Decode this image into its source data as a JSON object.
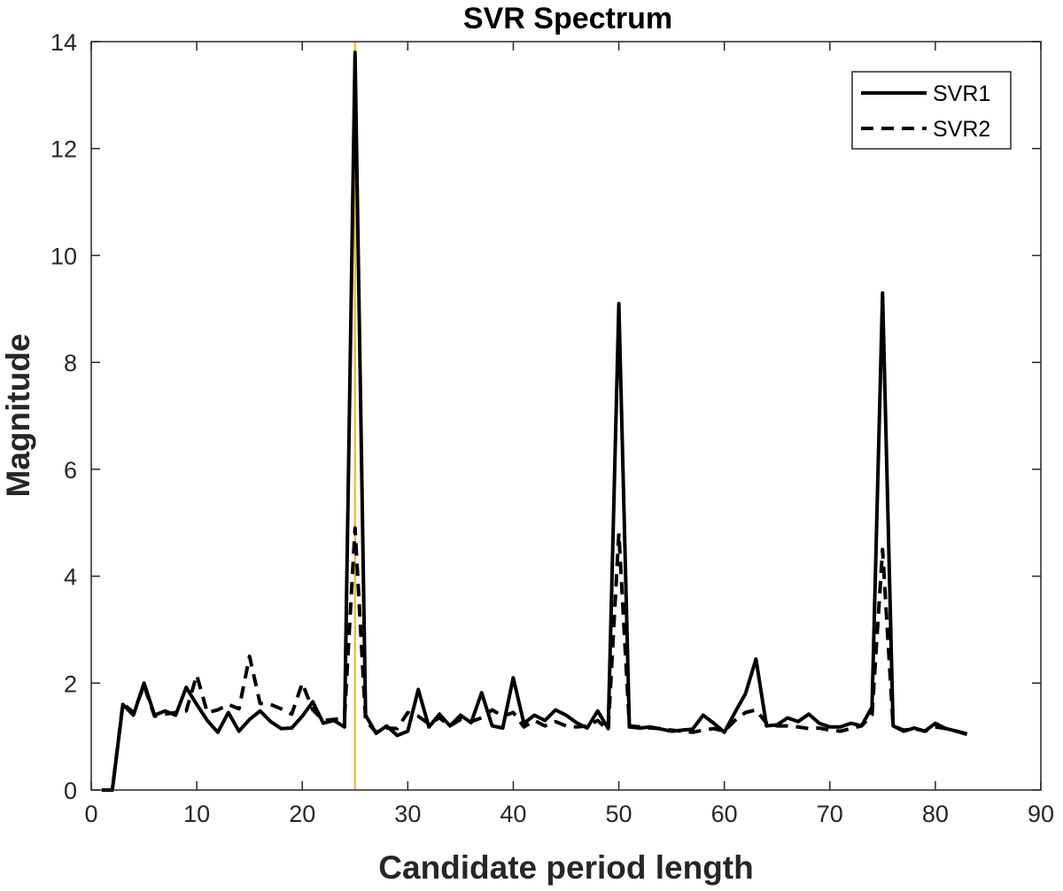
{
  "chart_data": {
    "type": "line",
    "title": "SVR Spectrum",
    "xlabel": "Candidate period length",
    "ylabel": "Magnitude",
    "xlim": [
      0,
      90
    ],
    "ylim": [
      0,
      14
    ],
    "xticks": [
      0,
      10,
      20,
      30,
      40,
      50,
      60,
      70,
      80,
      90
    ],
    "yticks": [
      0,
      2,
      4,
      6,
      8,
      10,
      12,
      14
    ],
    "grid": false,
    "legend_position": "top-right",
    "reference_line": {
      "x": 25,
      "color": "#EDB120"
    },
    "series": [
      {
        "name": "SVR1",
        "style": "solid",
        "color": "#000000",
        "x": [
          1,
          2,
          3,
          4,
          5,
          6,
          7,
          8,
          9,
          10,
          11,
          12,
          13,
          14,
          15,
          16,
          17,
          18,
          19,
          20,
          21,
          22,
          23,
          24,
          25,
          26,
          27,
          28,
          29,
          30,
          31,
          32,
          33,
          34,
          35,
          36,
          37,
          38,
          39,
          40,
          41,
          42,
          43,
          44,
          45,
          46,
          47,
          48,
          49,
          50,
          51,
          52,
          53,
          54,
          55,
          56,
          57,
          58,
          59,
          60,
          61,
          62,
          63,
          64,
          65,
          66,
          67,
          68,
          69,
          70,
          71,
          72,
          73,
          74,
          75,
          76,
          77,
          78,
          79,
          80,
          81,
          82,
          83
        ],
        "y": [
          0,
          0,
          1.6,
          1.4,
          2.0,
          1.4,
          1.48,
          1.4,
          1.92,
          1.6,
          1.3,
          1.08,
          1.45,
          1.1,
          1.32,
          1.48,
          1.28,
          1.15,
          1.16,
          1.38,
          1.65,
          1.25,
          1.3,
          1.18,
          13.8,
          1.4,
          1.06,
          1.2,
          1.02,
          1.1,
          1.88,
          1.18,
          1.42,
          1.2,
          1.4,
          1.26,
          1.82,
          1.2,
          1.16,
          2.1,
          1.25,
          1.4,
          1.3,
          1.5,
          1.4,
          1.26,
          1.16,
          1.48,
          1.15,
          9.1,
          1.18,
          1.16,
          1.18,
          1.14,
          1.1,
          1.12,
          1.14,
          1.4,
          1.25,
          1.08,
          1.45,
          1.8,
          2.45,
          1.2,
          1.22,
          1.35,
          1.28,
          1.42,
          1.25,
          1.18,
          1.18,
          1.25,
          1.2,
          1.55,
          9.3,
          1.2,
          1.1,
          1.16,
          1.1,
          1.25,
          1.15,
          1.1,
          1.04
        ]
      },
      {
        "name": "SVR2",
        "style": "dashed",
        "color": "#000000",
        "x": [
          1,
          2,
          3,
          4,
          5,
          6,
          7,
          8,
          9,
          10,
          11,
          12,
          13,
          14,
          15,
          16,
          17,
          18,
          19,
          20,
          21,
          22,
          23,
          24,
          25,
          26,
          27,
          28,
          29,
          30,
          31,
          32,
          33,
          34,
          35,
          36,
          37,
          38,
          39,
          40,
          41,
          42,
          43,
          44,
          45,
          46,
          47,
          48,
          49,
          50,
          51,
          52,
          53,
          54,
          55,
          56,
          57,
          58,
          59,
          60,
          61,
          62,
          63,
          64,
          65,
          66,
          67,
          68,
          69,
          70,
          71,
          72,
          73,
          74,
          75,
          76,
          77,
          78,
          79,
          80,
          81,
          82,
          83
        ],
        "y": [
          0,
          0,
          1.62,
          1.45,
          1.95,
          1.38,
          1.42,
          1.45,
          1.48,
          2.15,
          1.45,
          1.5,
          1.6,
          1.52,
          2.5,
          1.62,
          1.6,
          1.52,
          1.42,
          2.0,
          1.5,
          1.3,
          1.32,
          1.35,
          4.9,
          1.3,
          1.08,
          1.16,
          1.15,
          1.45,
          1.38,
          1.24,
          1.35,
          1.2,
          1.32,
          1.28,
          1.35,
          1.5,
          1.38,
          1.45,
          1.18,
          1.3,
          1.2,
          1.28,
          1.2,
          1.18,
          1.2,
          1.3,
          1.12,
          4.8,
          1.2,
          1.18,
          1.16,
          1.15,
          1.12,
          1.1,
          1.08,
          1.12,
          1.15,
          1.1,
          1.3,
          1.45,
          1.5,
          1.25,
          1.2,
          1.2,
          1.18,
          1.15,
          1.16,
          1.12,
          1.1,
          1.15,
          1.2,
          1.4,
          4.5,
          1.2,
          1.12,
          1.15,
          1.1,
          1.18,
          1.15,
          1.1,
          1.05
        ]
      }
    ]
  }
}
